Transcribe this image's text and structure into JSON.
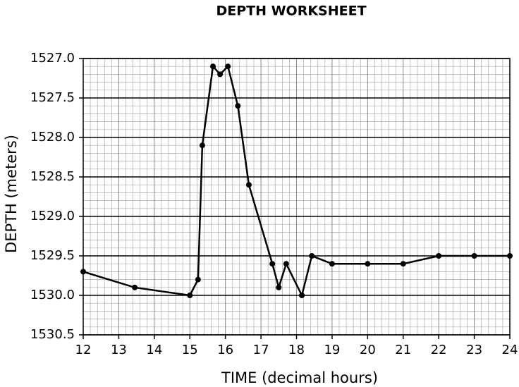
{
  "chart_data": {
    "type": "line",
    "title": "DEPTH WORKSHEET",
    "x_label": "TIME (decimal hours)",
    "y_label": "DEPTH (meters)",
    "x": [
      12,
      13.45,
      15.0,
      15.23,
      15.35,
      15.65,
      15.85,
      16.07,
      16.35,
      16.66,
      17.32,
      17.5,
      17.71,
      18.15,
      18.43,
      19,
      20,
      21,
      22,
      23,
      24
    ],
    "series": [
      {
        "name": "depth",
        "color": "#000000",
        "values": [
          1529.7,
          1529.9,
          1530.0,
          1529.8,
          1528.1,
          1527.1,
          1527.2,
          1527.1,
          1527.6,
          1528.6,
          1529.6,
          1529.9,
          1529.6,
          1530.0,
          1529.5,
          1529.6,
          1529.6,
          1529.6,
          1529.5,
          1529.5,
          1529.5
        ]
      }
    ],
    "xlim": [
      12,
      24
    ],
    "xticks": [
      12,
      13,
      14,
      15,
      16,
      17,
      18,
      19,
      20,
      21,
      22,
      23,
      24
    ],
    "ylim": [
      1530.5,
      1527.0
    ],
    "yticks": [
      {
        "value": 1527,
        "label": "1527.0"
      },
      1527.5,
      {
        "value": 1528,
        "label": "1528.0"
      },
      1528.5,
      {
        "value": 1529,
        "label": "1529.0"
      },
      1529.5,
      {
        "value": 1530,
        "label": "1530.0"
      },
      1530.5
    ],
    "grid": true
  }
}
